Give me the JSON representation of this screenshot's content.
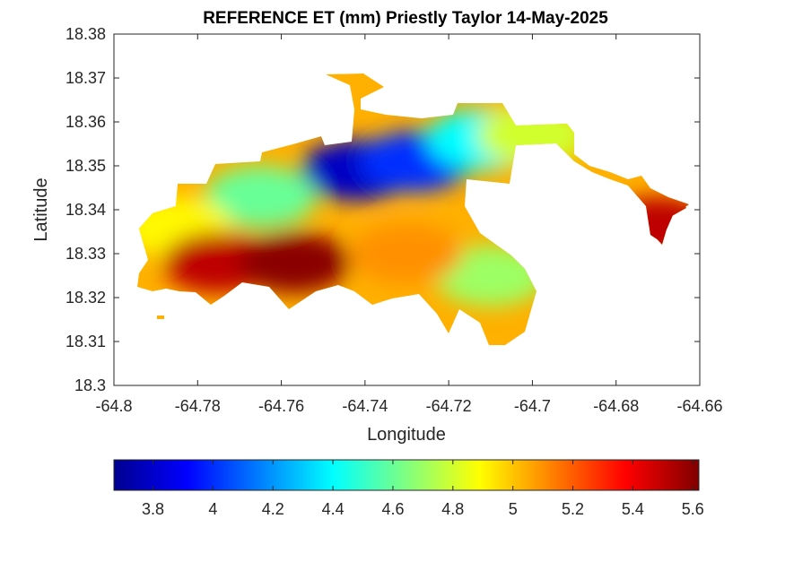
{
  "title": "REFERENCE ET (mm) Priestly Taylor 14-May-2025",
  "chart_data": {
    "type": "heatmap",
    "title": "REFERENCE ET (mm) Priestly Taylor 14-May-2025",
    "xlabel": "Longitude",
    "ylabel": "Latitude",
    "xlim": [
      -64.8,
      -64.66
    ],
    "ylim": [
      18.3,
      18.38
    ],
    "xticks": [
      "-64.8",
      "-64.78",
      "-64.76",
      "-64.74",
      "-64.72",
      "-64.7",
      "-64.68",
      "-64.66"
    ],
    "yticks": [
      "18.3",
      "18.31",
      "18.32",
      "18.33",
      "18.34",
      "18.35",
      "18.36",
      "18.37",
      "18.38"
    ],
    "colorbar": {
      "range": [
        3.67,
        5.62
      ],
      "ticks": [
        "3.8",
        "4",
        "4.2",
        "4.4",
        "4.6",
        "4.8",
        "5",
        "5.2",
        "5.4",
        "5.6"
      ],
      "colormap": "jet"
    },
    "grid": false,
    "regions": [
      {
        "name": "",
        "lon": -64.742,
        "lat": 18.349,
        "value": 3.8
      },
      {
        "name": "",
        "lon": -64.728,
        "lat": 18.351,
        "value": 4.0
      },
      {
        "name": "",
        "lon": -64.712,
        "lat": 18.356,
        "value": 4.4
      },
      {
        "name": "",
        "lon": -64.765,
        "lat": 18.343,
        "value": 4.6
      },
      {
        "name": "",
        "lon": -64.71,
        "lat": 18.325,
        "value": 4.7
      },
      {
        "name": "",
        "lon": -64.7,
        "lat": 18.357,
        "value": 4.8
      },
      {
        "name": "",
        "lon": -64.785,
        "lat": 18.336,
        "value": 4.9
      },
      {
        "name": "",
        "lon": -64.73,
        "lat": 18.33,
        "value": 5.1
      },
      {
        "name": "",
        "lon": -64.775,
        "lat": 18.328,
        "value": 5.5
      },
      {
        "name": "",
        "lon": -64.757,
        "lat": 18.328,
        "value": 5.6
      },
      {
        "name": "",
        "lon": -64.67,
        "lat": 18.336,
        "value": 5.5
      }
    ]
  },
  "colors": {
    "ocean": "#ffffff",
    "axis": "#262626"
  }
}
